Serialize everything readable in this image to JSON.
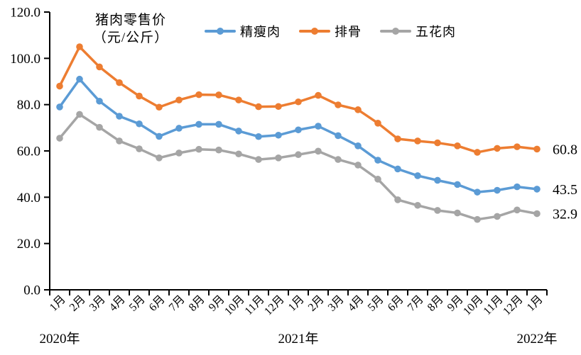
{
  "chart_data": {
    "type": "line",
    "title_lines": [
      "猪肉零售价",
      "（元/公斤）"
    ],
    "x_categories": [
      "1月",
      "2月",
      "3月",
      "4月",
      "5月",
      "6月",
      "7月",
      "8月",
      "9月",
      "10月",
      "11月",
      "12月",
      "1月",
      "2月",
      "3月",
      "4月",
      "5月",
      "6月",
      "7月",
      "8月",
      "9月",
      "10月",
      "11月",
      "12月",
      "1月"
    ],
    "year_labels": [
      {
        "text": "2020年",
        "month_index": 0
      },
      {
        "text": "2021年",
        "month_index": 12
      },
      {
        "text": "2022年",
        "month_index": 24
      }
    ],
    "y_axis": {
      "min": 0,
      "max": 120,
      "step": 20,
      "tick_labels": [
        "0.0",
        "20.0",
        "40.0",
        "60.0",
        "80.0",
        "100.0",
        "120.0"
      ]
    },
    "legend_position": "top",
    "grid": false,
    "series": [
      {
        "name": "精瘦肉",
        "color": "#5B9BD5",
        "end_label": "43.5",
        "values": [
          79.0,
          91.0,
          81.5,
          75.0,
          71.7,
          66.3,
          69.8,
          71.5,
          71.5,
          68.6,
          66.2,
          66.8,
          69.1,
          70.7,
          66.6,
          62.2,
          56.0,
          52.2,
          49.3,
          47.3,
          45.5,
          42.2,
          43.0,
          44.5,
          43.5
        ]
      },
      {
        "name": "排骨",
        "color": "#ED7D31",
        "end_label": "60.8",
        "values": [
          88.0,
          105.0,
          96.3,
          89.5,
          83.7,
          78.9,
          82.0,
          84.3,
          84.2,
          82.0,
          79.1,
          79.2,
          81.2,
          84.0,
          79.9,
          77.8,
          72.0,
          65.2,
          64.3,
          63.5,
          62.2,
          59.4,
          61.1,
          61.8,
          60.8
        ]
      },
      {
        "name": "五花肉",
        "color": "#A5A5A5",
        "end_label": "32.9",
        "values": [
          65.5,
          75.8,
          70.2,
          64.3,
          60.9,
          57.0,
          59.1,
          60.7,
          60.4,
          58.7,
          56.3,
          57.0,
          58.4,
          59.9,
          56.3,
          53.9,
          47.8,
          38.9,
          36.5,
          34.3,
          33.2,
          30.4,
          31.7,
          34.5,
          32.9
        ]
      }
    ]
  }
}
